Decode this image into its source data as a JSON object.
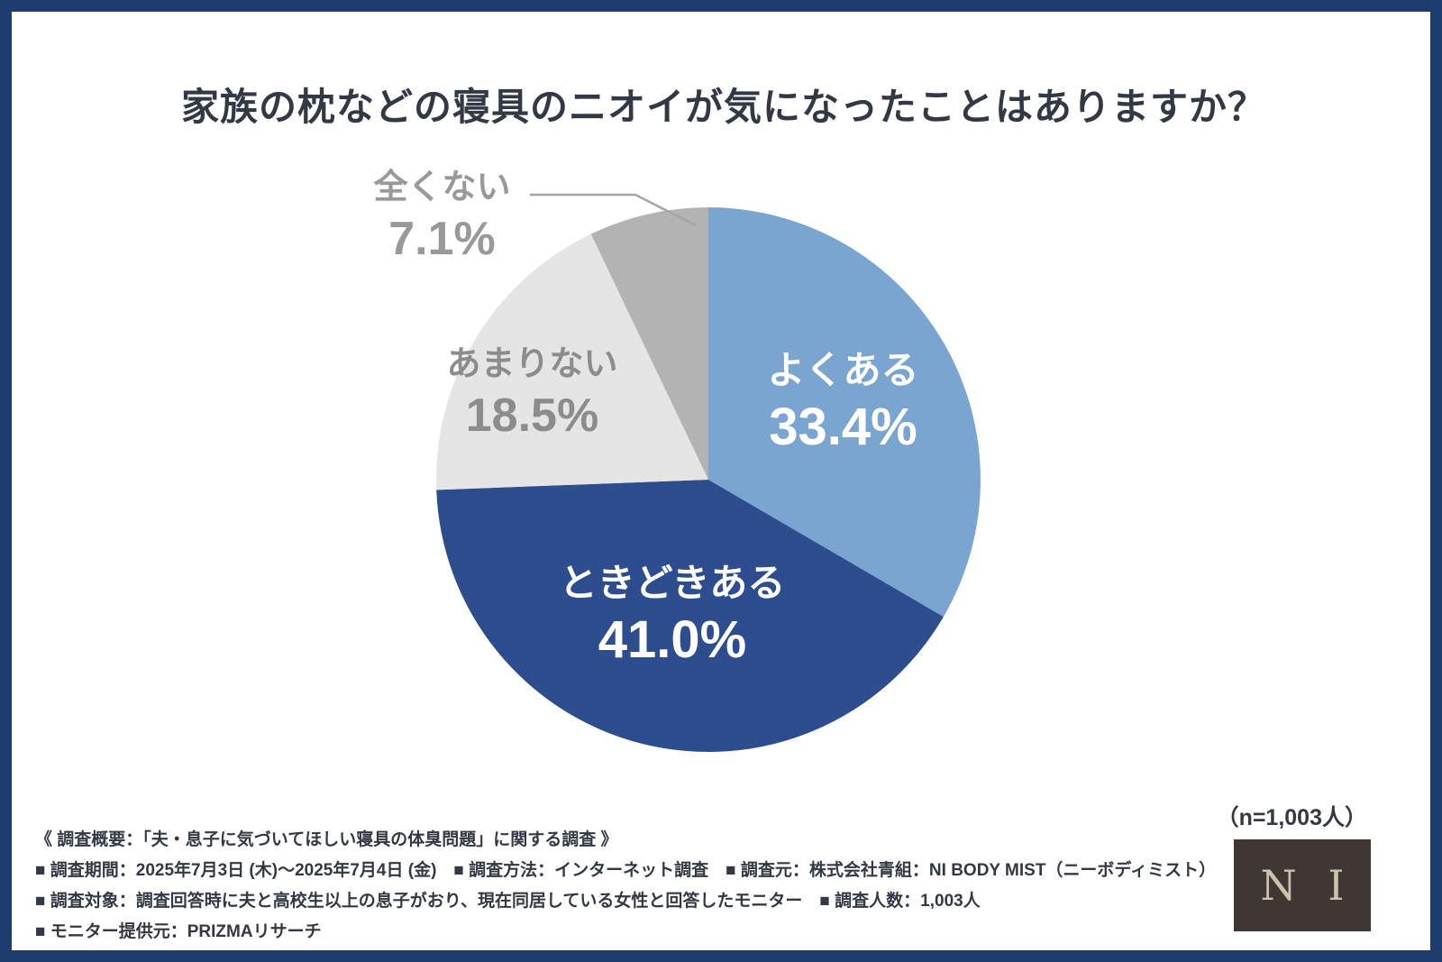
{
  "chart_data": {
    "type": "pie",
    "title": "家族の枕などの寝具のニオイが気になったことはありますか？",
    "n_label": "（n=1,003人）",
    "unit": "%",
    "start_angle_deg": 0,
    "direction": "clockwise",
    "legend": "none",
    "categories": [
      "よくある",
      "ときどきある",
      "あまりない",
      "全くない"
    ],
    "values": [
      33.4,
      41.0,
      18.5,
      7.1
    ],
    "slices": [
      {
        "id": "yoku-aru",
        "label": "よくある",
        "value": 33.4,
        "display": "33.4%",
        "color": "#7ba5d1",
        "text_color": "#ffffff"
      },
      {
        "id": "tokidoki-aru",
        "label": "ときどきある",
        "value": 41.0,
        "display": "41.0%",
        "color": "#2e4d8f",
        "text_color": "#ffffff"
      },
      {
        "id": "amari-nai",
        "label": "あまりない",
        "value": 18.5,
        "display": "18.5%",
        "color": "#e5e5e5",
        "text_color": "#8c8c8c"
      },
      {
        "id": "mattaku-nai",
        "label": "全くない",
        "value": 7.1,
        "display": "7.1%",
        "color": "#b3b3b3",
        "text_color": "#999999"
      }
    ]
  },
  "footer": {
    "lines": [
      "《 調査概要：「夫・息子に気づいてほしい寝具の体臭問題」に関する調査 》",
      "■ 調査期間：2025年7月3日 (木)〜2025年7月4日 (金)　■ 調査方法：インターネット調査　■ 調査元：株式会社青組：NI BODY MIST（ニーボディミスト）",
      "■ 調査対象：調査回答時に夫と高校生以上の息子がおり、現在同居している女性と回答したモニター　■ 調査人数：1,003人",
      "■ モニター提供元：PRIZMAリサーチ"
    ]
  },
  "logo": {
    "text": "N I"
  }
}
